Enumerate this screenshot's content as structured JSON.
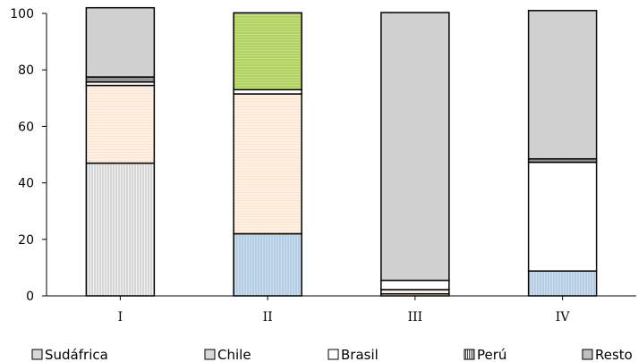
{
  "chart_data": {
    "type": "bar",
    "stacked": true,
    "categories": [
      "I",
      "II",
      "III",
      "IV"
    ],
    "ylim": [
      0,
      100
    ],
    "yticks": [
      0,
      20,
      40,
      60,
      80,
      100
    ],
    "grid": false,
    "legend_position": "bottom",
    "legend": [
      "Sudáfrica",
      "Chile",
      "Brasil",
      "Perú",
      "Resto"
    ],
    "segments": [
      [
        {
          "value": 47.0,
          "fill": "#f0f0f0",
          "pattern": "vertical-lines"
        },
        {
          "value": 27.5,
          "fill": "#fde3cc",
          "pattern": "horizontal-lines"
        },
        {
          "value": 1.2,
          "fill": "#ffffff",
          "pattern": "none"
        },
        {
          "value": 1.8,
          "fill": "#909090",
          "pattern": "vertical-lines"
        },
        {
          "value": 24.5,
          "fill": "#d0d0d0",
          "pattern": "none"
        }
      ],
      [
        {
          "value": 22.0,
          "fill": "#c6e2fb",
          "pattern": "vertical-lines"
        },
        {
          "value": 49.5,
          "fill": "#fde3cc",
          "pattern": "horizontal-lines"
        },
        {
          "value": 1.5,
          "fill": "#ffffff",
          "pattern": "none"
        },
        {
          "value": 27.2,
          "fill": "#c3e07a",
          "pattern": "horizontal-lines"
        }
      ],
      [
        {
          "value": 0.7,
          "fill": "#ffffff",
          "pattern": "none"
        },
        {
          "value": 1.5,
          "fill": "#fde3cc",
          "pattern": "horizontal-lines"
        },
        {
          "value": 3.3,
          "fill": "#ffffff",
          "pattern": "none"
        },
        {
          "value": 94.8,
          "fill": "#d0d0d0",
          "pattern": "none"
        }
      ],
      [
        {
          "value": 8.8,
          "fill": "#c6e2fb",
          "pattern": "vertical-lines"
        },
        {
          "value": 38.5,
          "fill": "#ffffff",
          "pattern": "none"
        },
        {
          "value": 1.2,
          "fill": "#909090",
          "pattern": "vertical-lines"
        },
        {
          "value": 52.5,
          "fill": "#d0d0d0",
          "pattern": "none"
        }
      ]
    ]
  },
  "colors": {
    "legend_sudafrica": "#d8d8d8",
    "legend_chile": "#d8d8d8",
    "legend_brasil": "#ffffff",
    "legend_peru": "#808080",
    "legend_resto": "#c0c0c0"
  }
}
